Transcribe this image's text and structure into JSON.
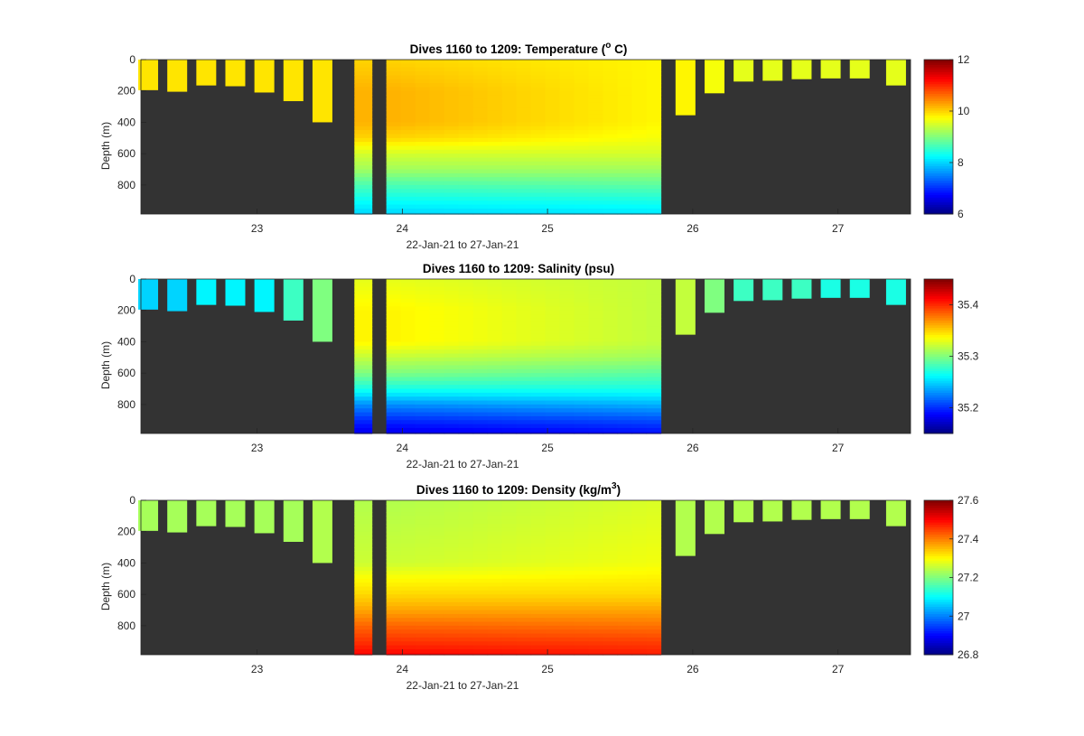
{
  "figure": {
    "background": "#ffffff",
    "axes_background": "#333333",
    "colormap": "jet"
  },
  "chart_data": [
    {
      "type": "heatmap",
      "title": "Dives 1160 to 1209: Temperature (",
      "title_superscript": "o",
      "title_suffix": " C)",
      "xlabel": "22-Jan-21 to 27-Jan-21",
      "ylabel": "Depth (m)",
      "xlim": [
        22.2,
        27.5
      ],
      "ylim": [
        0,
        985
      ],
      "y_reversed": true,
      "xticks": [
        23,
        24,
        25,
        26,
        27
      ],
      "yticks": [
        0,
        200,
        400,
        600,
        800
      ],
      "colorbar": {
        "lim": [
          6,
          12
        ],
        "ticks": [
          6,
          8,
          10,
          12
        ]
      },
      "short_dives": [
        {
          "x": 22.25,
          "depth": 195,
          "value": 9.9
        },
        {
          "x": 22.45,
          "depth": 205,
          "value": 9.9
        },
        {
          "x": 22.65,
          "depth": 165,
          "value": 9.9
        },
        {
          "x": 22.85,
          "depth": 170,
          "value": 9.9
        },
        {
          "x": 23.05,
          "depth": 210,
          "value": 9.9
        },
        {
          "x": 23.25,
          "depth": 265,
          "value": 9.9
        },
        {
          "x": 23.45,
          "depth": 400,
          "value": 9.9
        },
        {
          "x": 25.95,
          "depth": 355,
          "value": 9.8
        },
        {
          "x": 26.15,
          "depth": 215,
          "value": 9.7
        },
        {
          "x": 26.35,
          "depth": 140,
          "value": 9.6
        },
        {
          "x": 26.55,
          "depth": 135,
          "value": 9.6
        },
        {
          "x": 26.75,
          "depth": 125,
          "value": 9.6
        },
        {
          "x": 26.95,
          "depth": 120,
          "value": 9.6
        },
        {
          "x": 27.15,
          "depth": 120,
          "value": 9.6
        },
        {
          "x": 27.4,
          "depth": 165,
          "value": 9.6
        }
      ],
      "deep_sections": [
        {
          "x0": 23.67,
          "x1": 23.79,
          "bottom": 985
        },
        {
          "x0": 23.89,
          "x1": 25.78,
          "bottom": 985
        }
      ],
      "profile_depths": [
        0,
        200,
        400,
        500,
        600,
        700,
        800,
        900,
        985
      ],
      "profile_start": [
        10.0,
        10.2,
        10.2,
        10.0,
        9.5,
        9.2,
        8.7,
        8.3,
        8.0
      ],
      "profile_end": [
        9.8,
        9.8,
        9.8,
        9.7,
        9.5,
        9.2,
        8.8,
        8.4,
        8.1
      ]
    },
    {
      "type": "heatmap",
      "title": "Dives 1160 to 1209: Salinity (psu)",
      "xlabel": "22-Jan-21 to 27-Jan-21",
      "ylabel": "Depth (m)",
      "xlim": [
        22.2,
        27.5
      ],
      "ylim": [
        0,
        985
      ],
      "y_reversed": true,
      "xticks": [
        23,
        24,
        25,
        26,
        27
      ],
      "yticks": [
        0,
        200,
        400,
        600,
        800
      ],
      "colorbar": {
        "lim": [
          35.15,
          35.45
        ],
        "ticks": [
          35.2,
          35.3,
          35.4
        ]
      },
      "short_dives": [
        {
          "x": 22.25,
          "depth": 195,
          "value": 35.25
        },
        {
          "x": 22.45,
          "depth": 205,
          "value": 35.25
        },
        {
          "x": 22.65,
          "depth": 165,
          "value": 35.26
        },
        {
          "x": 22.85,
          "depth": 170,
          "value": 35.26
        },
        {
          "x": 23.05,
          "depth": 210,
          "value": 35.26
        },
        {
          "x": 23.25,
          "depth": 265,
          "value": 35.28
        },
        {
          "x": 23.45,
          "depth": 400,
          "value": 35.3
        },
        {
          "x": 25.95,
          "depth": 355,
          "value": 35.32
        },
        {
          "x": 26.15,
          "depth": 215,
          "value": 35.3
        },
        {
          "x": 26.35,
          "depth": 140,
          "value": 35.28
        },
        {
          "x": 26.55,
          "depth": 135,
          "value": 35.28
        },
        {
          "x": 26.75,
          "depth": 125,
          "value": 35.28
        },
        {
          "x": 26.95,
          "depth": 120,
          "value": 35.27
        },
        {
          "x": 27.15,
          "depth": 120,
          "value": 35.27
        },
        {
          "x": 27.4,
          "depth": 165,
          "value": 35.27
        }
      ],
      "deep_sections": [
        {
          "x0": 23.67,
          "x1": 23.79,
          "bottom": 985
        },
        {
          "x0": 23.89,
          "x1": 25.78,
          "bottom": 985
        }
      ],
      "profile_depths": [
        0,
        200,
        400,
        500,
        600,
        700,
        800,
        900,
        985
      ],
      "profile_start": [
        35.33,
        35.34,
        35.34,
        35.32,
        35.3,
        35.27,
        35.23,
        35.2,
        35.18
      ],
      "profile_end": [
        35.32,
        35.32,
        35.32,
        35.31,
        35.29,
        35.27,
        35.24,
        35.21,
        35.19
      ]
    },
    {
      "type": "heatmap",
      "title": "Dives 1160 to 1209: Density (kg/m",
      "title_superscript": "3",
      "title_suffix": ")",
      "xlabel": "22-Jan-21 to 27-Jan-21",
      "ylabel": "Depth (m)",
      "xlim": [
        22.2,
        27.5
      ],
      "ylim": [
        0,
        985
      ],
      "y_reversed": true,
      "xticks": [
        23,
        24,
        25,
        26,
        27
      ],
      "yticks": [
        0,
        200,
        400,
        600,
        800
      ],
      "colorbar": {
        "lim": [
          26.8,
          27.6
        ],
        "ticks": [
          26.8,
          27,
          27.2,
          27.4,
          27.6
        ]
      },
      "short_dives": [
        {
          "x": 22.25,
          "depth": 195,
          "value": 27.23
        },
        {
          "x": 22.45,
          "depth": 205,
          "value": 27.23
        },
        {
          "x": 22.65,
          "depth": 165,
          "value": 27.23
        },
        {
          "x": 22.85,
          "depth": 170,
          "value": 27.23
        },
        {
          "x": 23.05,
          "depth": 210,
          "value": 27.23
        },
        {
          "x": 23.25,
          "depth": 265,
          "value": 27.23
        },
        {
          "x": 23.45,
          "depth": 400,
          "value": 27.24
        },
        {
          "x": 25.95,
          "depth": 355,
          "value": 27.24
        },
        {
          "x": 26.15,
          "depth": 215,
          "value": 27.24
        },
        {
          "x": 26.35,
          "depth": 140,
          "value": 27.24
        },
        {
          "x": 26.55,
          "depth": 135,
          "value": 27.24
        },
        {
          "x": 26.75,
          "depth": 125,
          "value": 27.24
        },
        {
          "x": 26.95,
          "depth": 120,
          "value": 27.24
        },
        {
          "x": 27.15,
          "depth": 120,
          "value": 27.24
        },
        {
          "x": 27.4,
          "depth": 165,
          "value": 27.24
        }
      ],
      "deep_sections": [
        {
          "x0": 23.67,
          "x1": 23.79,
          "bottom": 985
        },
        {
          "x0": 23.89,
          "x1": 25.78,
          "bottom": 985
        }
      ],
      "profile_depths": [
        0,
        200,
        400,
        500,
        600,
        700,
        800,
        900,
        985
      ],
      "profile_start": [
        27.24,
        27.25,
        27.26,
        27.3,
        27.33,
        27.37,
        27.42,
        27.46,
        27.5
      ],
      "profile_end": [
        27.27,
        27.28,
        27.29,
        27.31,
        27.33,
        27.37,
        27.41,
        27.45,
        27.48
      ]
    }
  ]
}
